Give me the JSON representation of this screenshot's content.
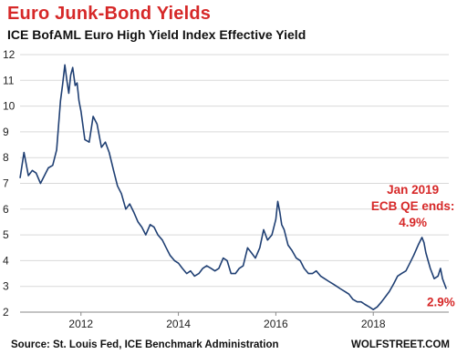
{
  "header": {
    "title": "Euro Junk-Bond Yields",
    "subtitle": "ICE BofAML Euro High Yield Index Effective Yield"
  },
  "footer": {
    "source": "Source: St. Louis Fed, ICE Benchmark Administration",
    "brand": "WOLFSTREET.COM"
  },
  "colors": {
    "line": "#1f3f73",
    "annotation": "#d62828",
    "grid": "#d9d9d9",
    "axis": "#888888"
  },
  "chart_data": {
    "type": "line",
    "title": "Euro Junk-Bond Yields",
    "subtitle": "ICE BofAML Euro High Yield Index Effective Yield",
    "xlabel": "",
    "ylabel": "",
    "xlim": [
      2010.75,
      2019.55
    ],
    "ylim": [
      2,
      12
    ],
    "xticks": [
      2012,
      2014,
      2016,
      2018
    ],
    "yticks": [
      2,
      3,
      4,
      5,
      6,
      7,
      8,
      9,
      10,
      11,
      12
    ],
    "grid": "horizontal",
    "series": [
      {
        "color": "#1f3f73",
        "x": [
          2010.75,
          2010.83,
          2010.92,
          2011.0,
          2011.08,
          2011.17,
          2011.25,
          2011.33,
          2011.42,
          2011.5,
          2011.58,
          2011.62,
          2011.67,
          2011.71,
          2011.75,
          2011.79,
          2011.83,
          2011.88,
          2011.92,
          2011.96,
          2012.0,
          2012.08,
          2012.17,
          2012.25,
          2012.33,
          2012.42,
          2012.5,
          2012.58,
          2012.67,
          2012.75,
          2012.83,
          2012.92,
          2013.0,
          2013.08,
          2013.17,
          2013.25,
          2013.33,
          2013.42,
          2013.5,
          2013.58,
          2013.67,
          2013.75,
          2013.83,
          2013.92,
          2014.0,
          2014.08,
          2014.17,
          2014.25,
          2014.33,
          2014.42,
          2014.5,
          2014.58,
          2014.67,
          2014.75,
          2014.83,
          2014.92,
          2015.0,
          2015.08,
          2015.17,
          2015.25,
          2015.33,
          2015.42,
          2015.5,
          2015.58,
          2015.67,
          2015.75,
          2015.83,
          2015.92,
          2016.0,
          2016.04,
          2016.08,
          2016.12,
          2016.17,
          2016.25,
          2016.33,
          2016.42,
          2016.5,
          2016.58,
          2016.67,
          2016.75,
          2016.83,
          2016.92,
          2017.0,
          2017.08,
          2017.17,
          2017.25,
          2017.33,
          2017.42,
          2017.5,
          2017.58,
          2017.67,
          2017.75,
          2017.83,
          2017.92,
          2018.0,
          2018.08,
          2018.17,
          2018.25,
          2018.33,
          2018.42,
          2018.5,
          2018.58,
          2018.67,
          2018.75,
          2018.83,
          2018.92,
          2019.0,
          2019.04,
          2019.08,
          2019.17,
          2019.25,
          2019.33,
          2019.38,
          2019.42,
          2019.46,
          2019.5
        ],
        "values": [
          7.2,
          8.2,
          7.3,
          7.5,
          7.4,
          7.0,
          7.3,
          7.6,
          7.7,
          8.3,
          10.2,
          10.8,
          11.6,
          11.0,
          10.5,
          11.2,
          11.5,
          10.8,
          10.9,
          10.2,
          9.8,
          8.7,
          8.6,
          9.6,
          9.3,
          8.4,
          8.6,
          8.2,
          7.5,
          6.9,
          6.6,
          6.0,
          6.2,
          5.9,
          5.5,
          5.3,
          5.0,
          5.4,
          5.3,
          5.0,
          4.8,
          4.5,
          4.2,
          4.0,
          3.9,
          3.7,
          3.5,
          3.6,
          3.4,
          3.5,
          3.7,
          3.8,
          3.7,
          3.6,
          3.7,
          4.1,
          4.0,
          3.5,
          3.5,
          3.7,
          3.8,
          4.5,
          4.3,
          4.1,
          4.5,
          5.2,
          4.8,
          5.0,
          5.6,
          6.3,
          5.9,
          5.4,
          5.2,
          4.6,
          4.4,
          4.1,
          4.0,
          3.7,
          3.5,
          3.5,
          3.6,
          3.4,
          3.3,
          3.2,
          3.1,
          3.0,
          2.9,
          2.8,
          2.7,
          2.5,
          2.4,
          2.4,
          2.3,
          2.2,
          2.1,
          2.2,
          2.4,
          2.6,
          2.8,
          3.1,
          3.4,
          3.5,
          3.6,
          3.9,
          4.2,
          4.6,
          4.9,
          4.7,
          4.3,
          3.7,
          3.3,
          3.4,
          3.7,
          3.3,
          3.1,
          2.9
        ]
      }
    ],
    "annotations": [
      {
        "lines": [
          "Jan 2019",
          "ECB QE ends:",
          "4.9%"
        ],
        "x": 2019.0,
        "y": 4.9
      },
      {
        "lines": [
          "2.9%"
        ],
        "x": 2019.5,
        "y": 2.9
      }
    ]
  }
}
